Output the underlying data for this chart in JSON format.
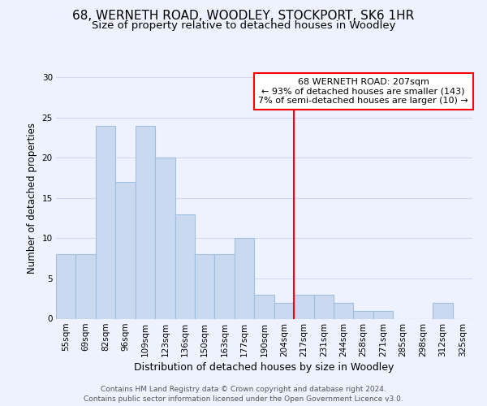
{
  "title1": "68, WERNETH ROAD, WOODLEY, STOCKPORT, SK6 1HR",
  "title2": "Size of property relative to detached houses in Woodley",
  "xlabel": "Distribution of detached houses by size in Woodley",
  "ylabel": "Number of detached properties",
  "categories": [
    "55sqm",
    "69sqm",
    "82sqm",
    "96sqm",
    "109sqm",
    "123sqm",
    "136sqm",
    "150sqm",
    "163sqm",
    "177sqm",
    "190sqm",
    "204sqm",
    "217sqm",
    "231sqm",
    "244sqm",
    "258sqm",
    "271sqm",
    "285sqm",
    "298sqm",
    "312sqm",
    "325sqm"
  ],
  "values": [
    8,
    8,
    24,
    17,
    24,
    20,
    13,
    8,
    8,
    10,
    3,
    2,
    3,
    3,
    2,
    1,
    1,
    0,
    0,
    2,
    0
  ],
  "bar_color": "#c9d9f0",
  "bar_edge_color": "#a0bedd",
  "vline_x_index": 11.5,
  "vline_color": "red",
  "annotation_text": "68 WERNETH ROAD: 207sqm\n← 93% of detached houses are smaller (143)\n7% of semi-detached houses are larger (10) →",
  "annotation_box_color": "white",
  "annotation_box_edge_color": "red",
  "ylim": [
    0,
    30
  ],
  "yticks": [
    0,
    5,
    10,
    15,
    20,
    25,
    30
  ],
  "footer": "Contains HM Land Registry data © Crown copyright and database right 2024.\nContains public sector information licensed under the Open Government Licence v3.0.",
  "background_color": "#eef2ff",
  "grid_color": "#d0d8f0",
  "title1_fontsize": 11,
  "title2_fontsize": 9.5,
  "xlabel_fontsize": 9,
  "ylabel_fontsize": 8.5,
  "tick_fontsize": 7.5,
  "footer_fontsize": 6.5,
  "annot_fontsize": 8
}
